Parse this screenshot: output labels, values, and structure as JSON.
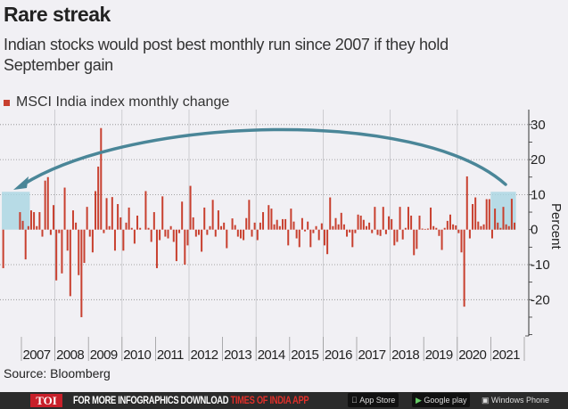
{
  "header": {
    "title": "Rare streak",
    "subtitle": "Indian stocks would post best monthly run since 2007 if they hold September gain"
  },
  "legend": {
    "label": "MSCI India index monthly change"
  },
  "source": "Source: Bloomberg",
  "footer": {
    "logo": "TOI",
    "text": "FOR MORE  INFOGRAPHICS DOWNLOAD ",
    "text_highlight": "TIMES OF INDIA  APP",
    "app_store": "App Store",
    "google_play": "Google play",
    "windows": "Windows Phone"
  },
  "colors": {
    "bar": "#c8402f",
    "arc": "#4a8698",
    "highlight": "#a9d6e2",
    "background": "#f1f0f4"
  },
  "chart_data": {
    "type": "bar",
    "title": "",
    "xlabel": "",
    "ylabel": "Percent",
    "ylim": [
      -30,
      33
    ],
    "yticks": [
      30,
      20,
      10,
      0,
      -10,
      -20
    ],
    "ytick_labels": [
      "30",
      "20",
      "10",
      "0",
      "-10",
      "-20"
    ],
    "x_start": "2006-06",
    "frequency": "monthly",
    "x_tick_labels": [
      "2007",
      "2008",
      "2009",
      "2010",
      "2011",
      "2012",
      "2013",
      "2014",
      "2015",
      "2016",
      "2017",
      "2018",
      "2019",
      "2020",
      "2021"
    ],
    "grid": "horizontal dotted, vertical every two years",
    "highlights": [
      {
        "from": "2006-06",
        "to": "2007-03"
      },
      {
        "from": "2021-01",
        "to": "2021-09"
      }
    ],
    "annotation": "arrow from 2021 highlight back to 2006-07 highlight",
    "series": [
      {
        "values": [
          -11,
          0,
          0,
          0,
          0,
          0,
          5,
          2.5,
          -8.5,
          1,
          5.5,
          5,
          1,
          5,
          -2,
          14,
          15,
          -1.5,
          7,
          -14.5,
          -1,
          -12.5,
          12,
          -6,
          -19,
          5.5,
          2,
          -13,
          -25,
          -9.5,
          6.5,
          -2,
          -6.5,
          11,
          18,
          29,
          -1,
          9,
          1,
          9.3,
          -6,
          7.3,
          3.5,
          -6,
          2,
          6.3,
          0.5,
          -4,
          4,
          0.5,
          0,
          11,
          0.5,
          -3.5,
          5,
          -11,
          -3,
          9.5,
          -2,
          -2.5,
          1,
          -3.5,
          -9,
          -1,
          8,
          -10,
          -4.5,
          12.5,
          3.5,
          -2,
          -1.5,
          -6.3,
          6.3,
          -1.5,
          1,
          8.5,
          -2,
          5.5,
          1,
          2,
          -5.3,
          0,
          3.2,
          1.3,
          -2,
          -2.5,
          -3,
          3.3,
          8.5,
          -2,
          2,
          -3,
          2,
          5,
          0,
          7,
          6,
          1.5,
          2.8,
          1,
          3,
          3,
          -4.5,
          6,
          2.3,
          -2.5,
          -5,
          3.3,
          -0.5,
          2.3,
          -5,
          -1,
          1,
          -3,
          1.8,
          -4.5,
          -7,
          9.2,
          1,
          3.3,
          1.5,
          4.8,
          1.5,
          -2,
          -0.8,
          -5,
          -1,
          4.3,
          4,
          2.8,
          1,
          2,
          -1,
          6.5,
          -1.5,
          -1.8,
          6.5,
          -1.3,
          3.8,
          3,
          -4.5,
          -3.5,
          6.5,
          -2.8,
          0.5,
          6.5,
          4,
          -7.3,
          -5.5,
          4,
          0.3,
          0.2,
          0.3,
          6.3,
          1,
          0.5,
          -1.8,
          -5.8,
          0.5,
          2.5,
          4.3,
          1.5,
          1.2,
          -1,
          -6.5,
          -22,
          15.2,
          -2.5,
          7.3,
          9.2,
          2.3,
          1,
          1.5,
          8.7,
          8.7,
          -2.5,
          6,
          2,
          0.5,
          6.5,
          1.5,
          1,
          8.8,
          2
        ]
      }
    ]
  }
}
